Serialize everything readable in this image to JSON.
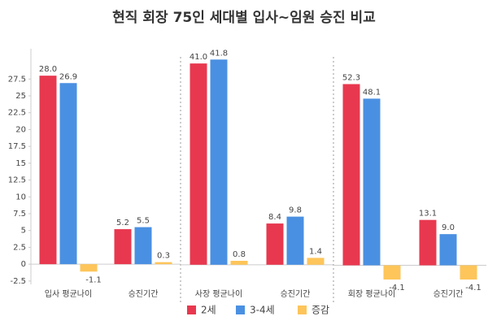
{
  "chart_data": [
    {
      "type": "bar",
      "title": "현직 회장 75인 세대별 입사~임원 승진 비교",
      "categories": [
        "입사 평균나이",
        "승진기간"
      ],
      "series": [
        {
          "name": "2세",
          "color": "#e8384f",
          "values": [
            28.0,
            5.2
          ],
          "value_labels": [
            "28.0",
            "5.2"
          ]
        },
        {
          "name": "3-4세",
          "color": "#4a90e2",
          "values": [
            26.9,
            5.5
          ],
          "value_labels": [
            "26.9",
            "5.5"
          ]
        },
        {
          "name": "증감",
          "color": "#fdc55a",
          "values": [
            -1.1,
            0.3
          ],
          "value_labels": [
            "-1.1",
            "0.3"
          ]
        }
      ],
      "ylim": [
        -3,
        32
      ],
      "yticks": [
        -2.5,
        0,
        2.5,
        5,
        7.5,
        10,
        12.5,
        15,
        17.5,
        20,
        22.5,
        25,
        27.5
      ]
    },
    {
      "type": "bar",
      "categories": [
        "사장 평균나이",
        "승진기간"
      ],
      "series": [
        {
          "color": "#e8384f",
          "values": [
            41.0,
            8.4
          ],
          "value_labels": [
            "41.0",
            "8.4"
          ]
        },
        {
          "color": "#4a90e2",
          "values": [
            41.8,
            9.8
          ],
          "value_labels": [
            "41.8",
            "9.8"
          ]
        },
        {
          "color": "#fdc55a",
          "values": [
            0.8,
            1.4
          ],
          "value_labels": [
            "0.8",
            "1.4"
          ]
        }
      ],
      "ylim": [
        -4,
        44
      ]
    },
    {
      "type": "bar",
      "categories": [
        "회장 평균나이",
        "승진기간"
      ],
      "series": [
        {
          "color": "#e8384f",
          "values": [
            52.3,
            13.1
          ],
          "value_labels": [
            "52.3",
            "13.1"
          ]
        },
        {
          "color": "#4a90e2",
          "values": [
            48.1,
            9.0
          ],
          "value_labels": [
            "48.1",
            "9.0"
          ]
        },
        {
          "color": "#fdc55a",
          "values": [
            -4.1,
            -4.1
          ],
          "value_labels": [
            "-4.1",
            "-4.1"
          ]
        }
      ],
      "ylim": [
        -5.5,
        62.5
      ]
    }
  ]
}
